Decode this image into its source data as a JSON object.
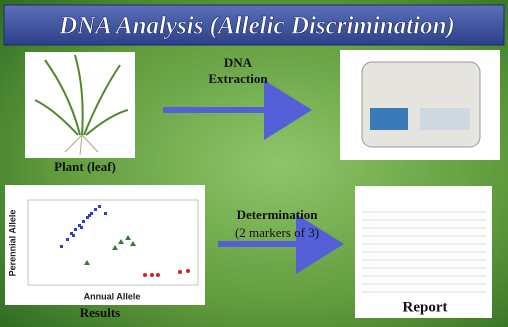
{
  "title": "DNA Analysis (Allelic Discrimination)",
  "plant": {
    "label": "Plant (leaf)"
  },
  "extraction": {
    "lines": [
      "DNA",
      "Extraction"
    ]
  },
  "determination": {
    "lines": [
      "Determination",
      "(2 markers of 3)"
    ]
  },
  "results": {
    "label": "Results",
    "y_axis_label": "Perennial Allele",
    "x_axis_label": "Annual Allele"
  },
  "report": {
    "label": "Report"
  }
}
